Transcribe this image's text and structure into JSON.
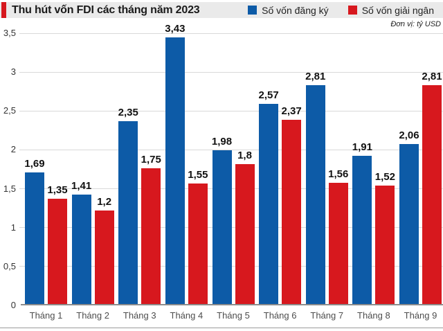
{
  "header": {
    "title": "Thu hút vốn FDI các tháng năm 2023",
    "accent_color": "#d6181e"
  },
  "unit_note": "Đơn vị: tỷ USD",
  "legend": [
    {
      "label": "Số vốn đăng ký",
      "color": "#0d5ba7"
    },
    {
      "label": "Số vốn giải ngân",
      "color": "#d7181e"
    }
  ],
  "chart_data": {
    "type": "bar",
    "title": "Thu hút vốn FDI các tháng năm 2023",
    "unit": "tỷ USD",
    "categories": [
      "Tháng 1",
      "Tháng 2",
      "Tháng 3",
      "Tháng 4",
      "Tháng 5",
      "Tháng 6",
      "Tháng 7",
      "Tháng 8",
      "Tháng 9"
    ],
    "series": [
      {
        "name": "Số vốn đăng ký",
        "color": "#0d5ba7",
        "values": [
          1.69,
          1.41,
          2.35,
          3.43,
          1.98,
          2.57,
          2.81,
          1.91,
          2.06
        ],
        "labels": [
          "1,69",
          "1,41",
          "2,35",
          "3,43",
          "1,98",
          "2,57",
          "2,81",
          "1,91",
          "2,06"
        ]
      },
      {
        "name": "Số vốn giải ngân",
        "color": "#d7181e",
        "values": [
          1.35,
          1.2,
          1.75,
          1.55,
          1.8,
          2.37,
          1.56,
          1.52,
          2.81
        ],
        "labels": [
          "1,35",
          "1,2",
          "1,75",
          "1,55",
          "1,8",
          "2,37",
          "1,56",
          "1,52",
          "2,81"
        ]
      }
    ],
    "y_axis": {
      "min": 0,
      "max": 3.5,
      "step": 0.5,
      "tick_labels": [
        "0",
        "0,5",
        "1",
        "1,5",
        "2",
        "2,5",
        "3",
        "3,5"
      ]
    },
    "grid": true,
    "legend_position": "top-right"
  }
}
